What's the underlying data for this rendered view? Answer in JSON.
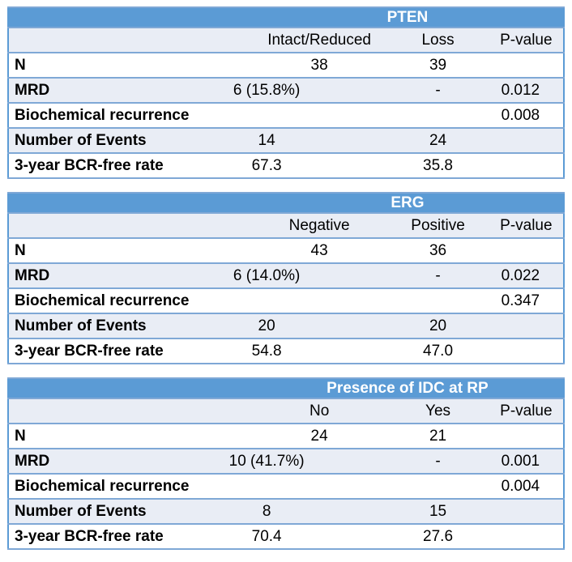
{
  "colors": {
    "header_bg": "#5b9bd5",
    "header_text": "#ffffff",
    "band_bg": "#e9edf5",
    "row_bg": "#ffffff",
    "border_outer": "#5b9bd5",
    "border_inner": "#7fa8d6",
    "text": "#000000"
  },
  "tables": [
    {
      "title": "PTEN",
      "columns": [
        "Intact/Reduced",
        "Loss",
        "P-value"
      ],
      "rows": [
        {
          "label": "N",
          "col1": "38",
          "col2": "39",
          "pvalue": ""
        },
        {
          "label": "MRD",
          "col1": "6 (15.8%)",
          "col2": "-",
          "pvalue": "0.012"
        },
        {
          "label": "Biochemical recurrence",
          "col1": "",
          "col2": "",
          "pvalue": "0.008"
        },
        {
          "label": "Number of Events",
          "col1": "14",
          "col2": "24",
          "pvalue": ""
        },
        {
          "label": "3-year BCR-free rate",
          "col1": "67.3",
          "col2": "35.8",
          "pvalue": ""
        }
      ]
    },
    {
      "title": "ERG",
      "columns": [
        "Negative",
        "Positive",
        "P-value"
      ],
      "rows": [
        {
          "label": "N",
          "col1": "43",
          "col2": "36",
          "pvalue": ""
        },
        {
          "label": "MRD",
          "col1": "6 (14.0%)",
          "col2": "-",
          "pvalue": "0.022"
        },
        {
          "label": "Biochemical recurrence",
          "col1": "",
          "col2": "",
          "pvalue": "0.347"
        },
        {
          "label": "Number of Events",
          "col1": "20",
          "col2": "20",
          "pvalue": ""
        },
        {
          "label": "3-year BCR-free rate",
          "col1": "54.8",
          "col2": "47.0",
          "pvalue": ""
        }
      ]
    },
    {
      "title": "Presence of IDC at RP",
      "columns": [
        "No",
        "Yes",
        "P-value"
      ],
      "rows": [
        {
          "label": "N",
          "col1": "24",
          "col2": "21",
          "pvalue": ""
        },
        {
          "label": "MRD",
          "col1": "10 (41.7%)",
          "col2": "-",
          "pvalue": "0.001"
        },
        {
          "label": "Biochemical recurrence",
          "col1": "",
          "col2": "",
          "pvalue": "0.004"
        },
        {
          "label": "Number of Events",
          "col1": "8",
          "col2": "15",
          "pvalue": ""
        },
        {
          "label": "3-year BCR-free rate",
          "col1": "70.4",
          "col2": "27.6",
          "pvalue": ""
        }
      ]
    }
  ]
}
